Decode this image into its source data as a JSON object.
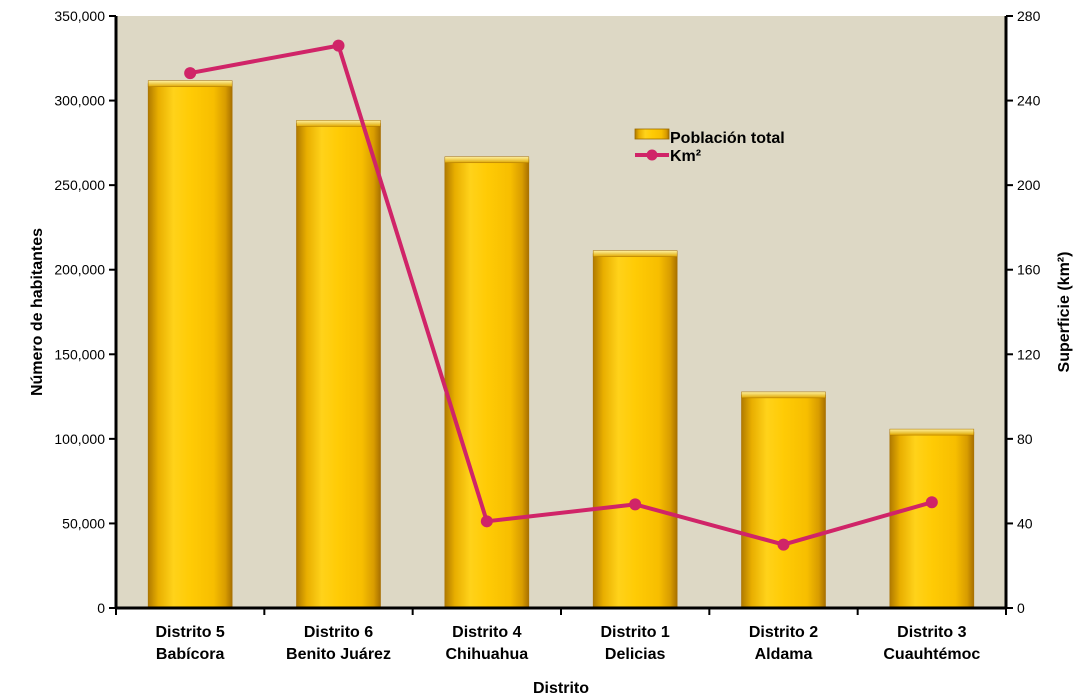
{
  "chart_data": {
    "type": "bar",
    "categories": [
      [
        "Distrito 5",
        "Babícora"
      ],
      [
        "Distrito 6",
        "Benito Juárez"
      ],
      [
        "Distrito 4",
        "Chihuahua"
      ],
      [
        "Distrito 1",
        "Delicias"
      ],
      [
        "Distrito 2",
        "Aldama"
      ],
      [
        "Distrito 3",
        "Cuauhtémoc"
      ]
    ],
    "series": [
      {
        "name": "Población total",
        "type": "bar",
        "axis": "left",
        "values": [
          310000,
          286500,
          265000,
          209500,
          126000,
          104000
        ],
        "color": "#FFC800"
      },
      {
        "name": "Km²",
        "type": "line",
        "axis": "right",
        "values": [
          253,
          266,
          41,
          49,
          30,
          50
        ],
        "color": "#D02468"
      }
    ],
    "xlabel": "Distrito",
    "ylabel": "Número de habitantes",
    "y2label": "Superficie (km²)",
    "ylim": [
      0,
      350000
    ],
    "y2lim": [
      0,
      280
    ],
    "yticks": [
      "0",
      "50,000",
      "100,000",
      "150,000",
      "200,000",
      "250,000",
      "300,000",
      "350,000"
    ],
    "y2ticks": [
      "0",
      "40",
      "80",
      "120",
      "160",
      "200",
      "240",
      "280"
    ],
    "legend_position": "upper-right inside plot",
    "grid": false,
    "plot_background": "#DDD8C5"
  }
}
